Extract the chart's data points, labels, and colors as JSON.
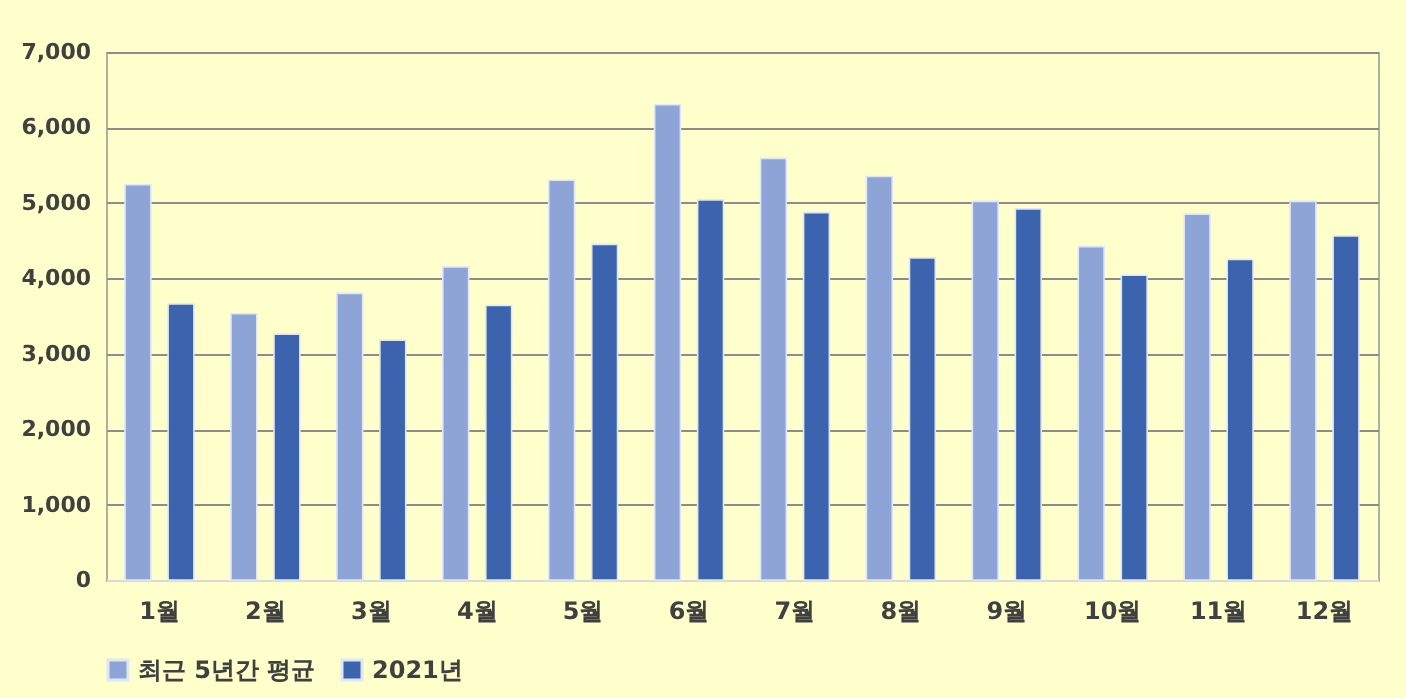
{
  "chart_data": {
    "type": "bar",
    "categories": [
      "1월",
      "2월",
      "3월",
      "4월",
      "5월",
      "6월",
      "7월",
      "8월",
      "9월",
      "10월",
      "11월",
      "12월"
    ],
    "series": [
      {
        "name": "최근 5년간 평균",
        "color": "#8fa4d6",
        "values": [
          5240,
          3530,
          3800,
          4150,
          5300,
          6300,
          5590,
          5350,
          5020,
          4420,
          4850,
          5020
        ]
      },
      {
        "name": "2021년",
        "color": "#3c64ae",
        "values": [
          3660,
          3260,
          3180,
          3640,
          4450,
          5040,
          4870,
          4270,
          4920,
          4040,
          4250,
          4560
        ]
      }
    ],
    "ylim": [
      0,
      7000
    ],
    "yticks": [
      0,
      {
        "value": 1000,
        "label": "1,000"
      },
      {
        "value": 2000,
        "label": "2,000"
      },
      {
        "value": 3000,
        "label": "3,000"
      },
      {
        "value": 4000,
        "label": "4,000"
      },
      {
        "value": 5000,
        "label": "5,000"
      },
      {
        "value": 6000,
        "label": "6,000"
      },
      {
        "value": 7000,
        "label": "7,000"
      }
    ],
    "grid": "y",
    "legend": "bottom"
  }
}
